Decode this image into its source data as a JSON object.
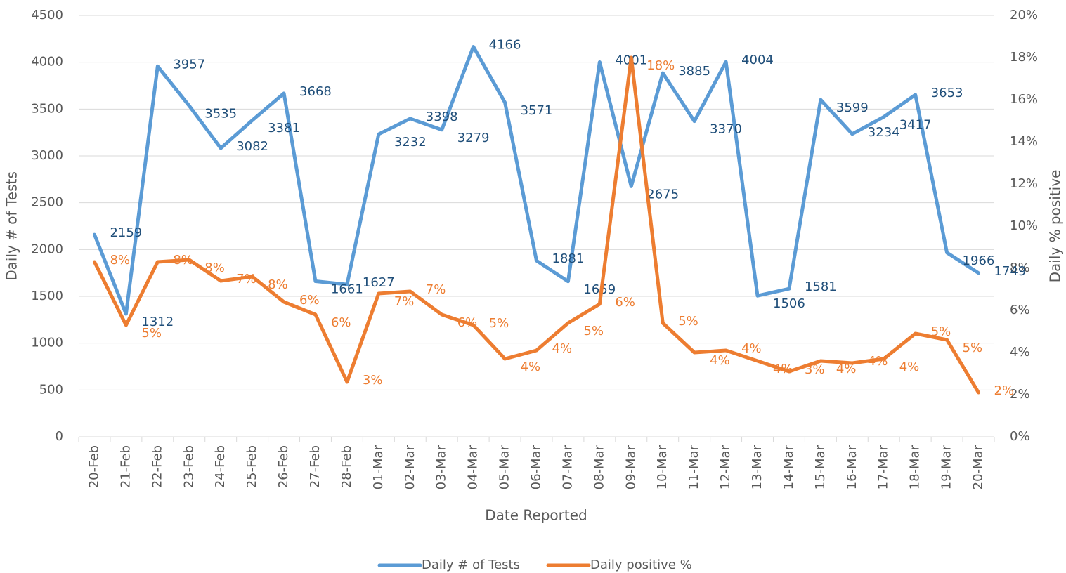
{
  "chart_data": {
    "type": "line",
    "x_label": "Date Reported",
    "y_label": "Daily # of Tests",
    "y2_label": "Daily % positive",
    "categories": [
      "20-Feb",
      "21-Feb",
      "22-Feb",
      "23-Feb",
      "24-Feb",
      "25-Feb",
      "26-Feb",
      "27-Feb",
      "28-Feb",
      "01-Mar",
      "02-Mar",
      "03-Mar",
      "04-Mar",
      "05-Mar",
      "06-Mar",
      "07-Mar",
      "08-Mar",
      "09-Mar",
      "10-Mar",
      "11-Mar",
      "12-Mar",
      "13-Mar",
      "14-Mar",
      "15-Mar",
      "16-Mar",
      "17-Mar",
      "18-Mar",
      "19-Mar",
      "20-Mar"
    ],
    "series": [
      {
        "name": "Daily # of Tests",
        "color": "#5b9bd5",
        "label_color": "#1f4e79",
        "values": [
          2159,
          1312,
          3957,
          3535,
          3082,
          3381,
          3668,
          1661,
          1627,
          3232,
          3398,
          3279,
          4166,
          3571,
          1881,
          1659,
          4001,
          2675,
          3885,
          3370,
          4004,
          1506,
          1581,
          3599,
          3234,
          3417,
          3653,
          1966,
          1749
        ]
      },
      {
        "name": "Daily positive %",
        "color": "#ed7d31",
        "label_color": "#ed7d31",
        "axis": "y2",
        "values": [
          8.3,
          5.3,
          8.3,
          8.4,
          7.4,
          7.6,
          6.4,
          5.8,
          2.6,
          6.8,
          6.9,
          5.8,
          5.3,
          3.7,
          4.1,
          5.4,
          6.3,
          18.0,
          5.4,
          4.0,
          4.1,
          3.6,
          3.1,
          3.6,
          3.5,
          3.7,
          4.9,
          4.6,
          2.1
        ],
        "value_labels": [
          "8%",
          "5%",
          "8%",
          "8%",
          "7%",
          "8%",
          "6%",
          "6%",
          "3%",
          "7%",
          "7%",
          "6%",
          "5%",
          "4%",
          "4%",
          "5%",
          "6%",
          "18%",
          "5%",
          "4%",
          "4%",
          "4%",
          "3%",
          "4%",
          "4%",
          "4%",
          "5%",
          "5%",
          "2%"
        ]
      }
    ],
    "ylim": [
      0,
      4500
    ],
    "yticks": [
      0,
      500,
      1000,
      1500,
      2000,
      2500,
      3000,
      3500,
      4000,
      4500
    ],
    "y2lim": [
      0,
      20
    ],
    "y2ticks": [
      {
        "value": 0,
        "label": "0%"
      },
      {
        "value": 2,
        "label": "2%"
      },
      {
        "value": 4,
        "label": "4%"
      },
      {
        "value": 6,
        "label": "6%"
      },
      {
        "value": 8,
        "label": "8%"
      },
      {
        "value": 10,
        "label": "10%"
      },
      {
        "value": 12,
        "label": "12%"
      },
      {
        "value": 14,
        "label": "14%"
      },
      {
        "value": 16,
        "label": "16%"
      },
      {
        "value": 18,
        "label": "18%"
      },
      {
        "value": 20,
        "label": "20%"
      }
    ],
    "grid": true,
    "legend": "bottom"
  }
}
